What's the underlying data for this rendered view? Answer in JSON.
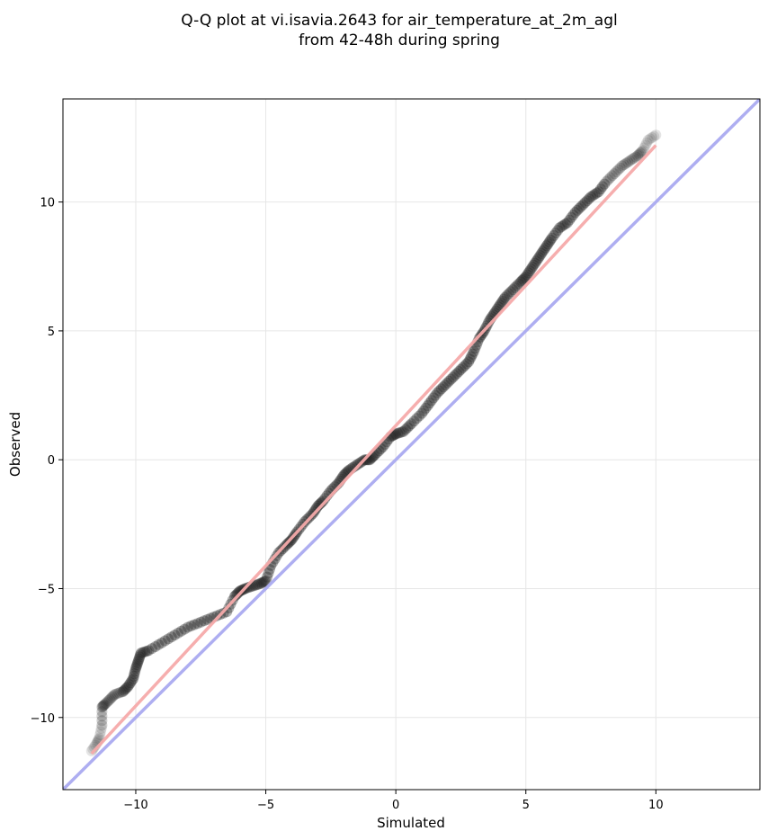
{
  "chart_data": {
    "type": "scatter",
    "title": "Q-Q plot at vi.isavia.2643 for air_temperature_at_2m_agl",
    "subtitle": "from 42-48h during spring",
    "xlabel": "Simulated",
    "ylabel": "Observed",
    "xlim": [
      -12.8,
      14.0
    ],
    "ylim": [
      -12.8,
      14.0
    ],
    "xticks": [
      -10,
      -5,
      0,
      5,
      10
    ],
    "yticks": [
      -10,
      -5,
      0,
      5,
      10
    ],
    "xtick_labels": [
      "−10",
      "−5",
      "0",
      "5",
      "10"
    ],
    "ytick_labels": [
      "−10",
      "−5",
      "0",
      "5",
      "10"
    ],
    "grid": true,
    "reference_lines": [
      {
        "id": "identity",
        "color": "#aaaaf0",
        "x": [
          -12.8,
          14.0
        ],
        "y": [
          -12.8,
          14.0
        ]
      },
      {
        "id": "fit",
        "color": "#f5aaaa",
        "x": [
          -11.7,
          10.0
        ],
        "y": [
          -11.4,
          12.2
        ]
      }
    ],
    "points": {
      "color": "#222222",
      "x": [
        -11.7,
        -11.5,
        -11.4,
        -11.3,
        -11.3,
        -11.2,
        -11.0,
        -10.8,
        -10.5,
        -10.3,
        -10.1,
        -10.0,
        -9.9,
        -9.8,
        -9.5,
        -9.0,
        -8.5,
        -8.0,
        -7.5,
        -7.0,
        -6.5,
        -6.2,
        -6.0,
        -5.8,
        -5.5,
        -5.2,
        -5.0,
        -4.8,
        -4.5,
        -4.2,
        -4.0,
        -3.8,
        -3.5,
        -3.2,
        -3.0,
        -2.8,
        -2.5,
        -2.2,
        -2.0,
        -1.8,
        -1.5,
        -1.2,
        -1.0,
        -0.8,
        -0.5,
        -0.2,
        0.0,
        0.3,
        0.6,
        1.0,
        1.3,
        1.6,
        1.9,
        2.2,
        2.5,
        2.8,
        3.0,
        3.2,
        3.4,
        3.6,
        3.8,
        4.0,
        4.2,
        4.5,
        4.8,
        5.0,
        5.2,
        5.4,
        5.6,
        5.8,
        6.0,
        6.3,
        6.6,
        6.9,
        7.2,
        7.5,
        7.8,
        8.1,
        8.4,
        8.7,
        9.0,
        9.3,
        9.5,
        9.7,
        10.0
      ],
      "y": [
        -11.3,
        -11.0,
        -10.8,
        -10.3,
        -9.6,
        -9.5,
        -9.3,
        -9.1,
        -9.0,
        -8.8,
        -8.5,
        -8.1,
        -7.8,
        -7.5,
        -7.4,
        -7.1,
        -6.8,
        -6.5,
        -6.3,
        -6.1,
        -5.9,
        -5.3,
        -5.1,
        -5.0,
        -4.9,
        -4.8,
        -4.7,
        -4.1,
        -3.6,
        -3.3,
        -3.1,
        -2.8,
        -2.4,
        -2.1,
        -1.8,
        -1.6,
        -1.2,
        -0.9,
        -0.6,
        -0.4,
        -0.2,
        0.0,
        0.0,
        0.2,
        0.5,
        0.9,
        1.0,
        1.1,
        1.4,
        1.8,
        2.2,
        2.6,
        2.9,
        3.2,
        3.5,
        3.8,
        4.2,
        4.7,
        5.0,
        5.4,
        5.7,
        6.0,
        6.3,
        6.6,
        6.9,
        7.1,
        7.4,
        7.7,
        8.0,
        8.3,
        8.6,
        9.0,
        9.2,
        9.6,
        9.9,
        10.2,
        10.4,
        10.8,
        11.1,
        11.4,
        11.6,
        11.8,
        12.0,
        12.4,
        12.6
      ]
    }
  }
}
